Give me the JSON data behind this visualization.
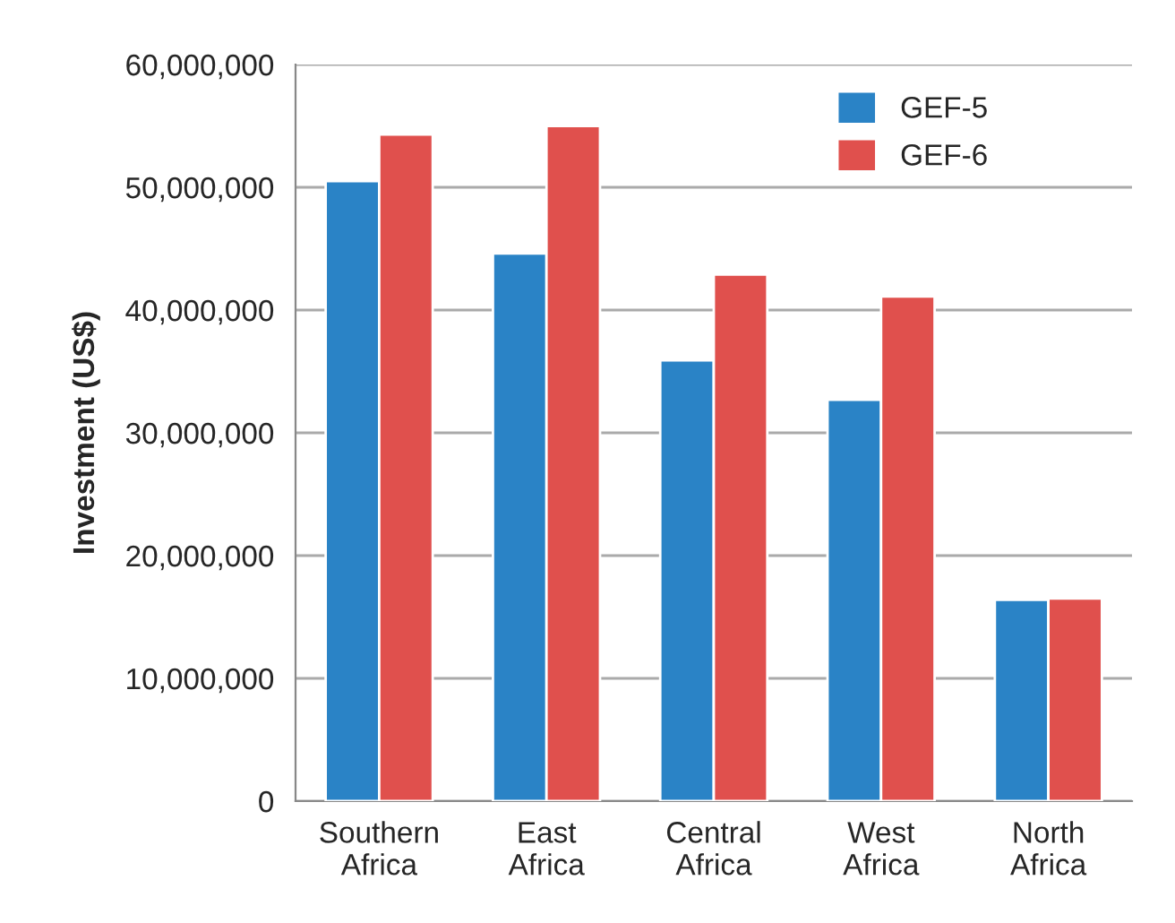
{
  "chart_data": {
    "type": "bar",
    "ylabel": "Investment (US$)",
    "categories": [
      "Southern\nAfrica",
      "East\nAfrica",
      "Central\nAfrica",
      "West\nAfrica",
      "North\nAfrica"
    ],
    "series": [
      {
        "name": "GEF-5",
        "color": "#2a83c6",
        "values": [
          50500000,
          44600000,
          35900000,
          32700000,
          16400000
        ]
      },
      {
        "name": "GEF-6",
        "color": "#e0504d",
        "values": [
          54300000,
          55000000,
          42900000,
          41100000,
          16500000
        ]
      }
    ],
    "ylim": [
      0,
      60000000
    ],
    "yticks": [
      {
        "value": 0,
        "label": "0"
      },
      {
        "value": 10000000,
        "label": "10,000,000"
      },
      {
        "value": 20000000,
        "label": "20,000,000"
      },
      {
        "value": 30000000,
        "label": "30,000,000"
      },
      {
        "value": 40000000,
        "label": "40,000,000"
      },
      {
        "value": 50000000,
        "label": "50,000,000"
      },
      {
        "value": 60000000,
        "label": "60,000,000"
      }
    ],
    "grid": "y",
    "legend": "top right"
  }
}
